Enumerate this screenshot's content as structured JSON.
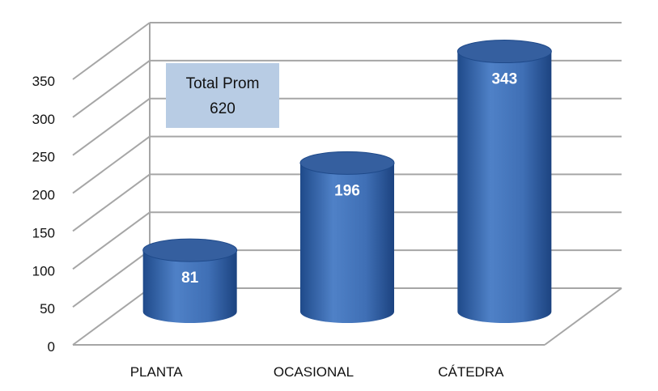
{
  "chart_data": {
    "type": "bar",
    "style": "3d-cylinder",
    "categories": [
      "PLANTA",
      "OCASIONAL",
      "CÁTEDRA"
    ],
    "values": [
      81,
      196,
      343
    ],
    "value_labels": [
      "81",
      "196",
      "343"
    ],
    "ylim": [
      0,
      350
    ],
    "yticks": [
      "0",
      "50",
      "100",
      "150",
      "200",
      "250",
      "300",
      "350"
    ],
    "grid": true,
    "legend": "none",
    "annotation": {
      "line1": "Total Prom",
      "line2": "620"
    },
    "colors": {
      "bar": "#3f6fb5",
      "bar_dark": "#1f4a8a",
      "bar_top": "#355f9f",
      "grid": "#a6a6a6",
      "annotation_bg": "#b8cce4"
    }
  }
}
